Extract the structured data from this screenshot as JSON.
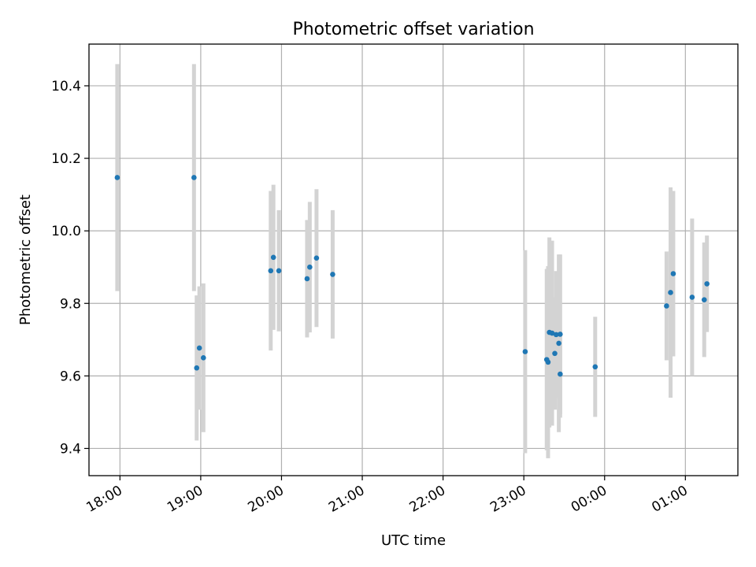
{
  "chart_data": {
    "type": "scatter",
    "title": "Photometric offset variation",
    "xlabel": "UTC time",
    "ylabel": "Photometric offset",
    "x_tick_labels": [
      "18:00",
      "19:00",
      "20:00",
      "21:00",
      "22:00",
      "23:00",
      "00:00",
      "01:00"
    ],
    "y_ticks": [
      9.4,
      9.6,
      9.8,
      10.0,
      10.2,
      10.4
    ],
    "y_tick_labels": [
      "9.4",
      "9.6",
      "9.8",
      "10.0",
      "10.2",
      "10.4"
    ],
    "xlim": [
      "17:37",
      "01:39"
    ],
    "ylim": [
      9.325,
      10.515
    ],
    "grid": true,
    "legend": "none",
    "colors": {
      "point": "#1f77b4",
      "errorbar": "#d3d3d3",
      "grid": "#b0b0b0"
    },
    "points": [
      {
        "x": "17:58",
        "y": 10.147,
        "err": 0.313
      },
      {
        "x": "18:55",
        "y": 10.147,
        "err": 0.313
      },
      {
        "x": "18:57",
        "y": 9.622,
        "err": 0.2
      },
      {
        "x": "18:59",
        "y": 9.677,
        "err": 0.17
      },
      {
        "x": "19:02",
        "y": 9.65,
        "err": 0.205
      },
      {
        "x": "19:52",
        "y": 9.89,
        "err": 0.22
      },
      {
        "x": "19:54",
        "y": 9.927,
        "err": 0.2
      },
      {
        "x": "19:58",
        "y": 9.89,
        "err": 0.167
      },
      {
        "x": "20:19",
        "y": 9.868,
        "err": 0.162
      },
      {
        "x": "20:21",
        "y": 9.9,
        "err": 0.18
      },
      {
        "x": "20:26",
        "y": 9.925,
        "err": 0.19
      },
      {
        "x": "20:38",
        "y": 9.88,
        "err": 0.177
      },
      {
        "x": "23:01",
        "y": 9.667,
        "err": 0.28
      },
      {
        "x": "23:17",
        "y": 9.645,
        "err": 0.25
      },
      {
        "x": "23:18",
        "y": 9.638,
        "err": 0.265
      },
      {
        "x": "23:19",
        "y": 9.72,
        "err": 0.262
      },
      {
        "x": "23:21",
        "y": 9.718,
        "err": 0.255
      },
      {
        "x": "23:23",
        "y": 9.662,
        "err": 0.155
      },
      {
        "x": "23:24",
        "y": 9.714,
        "err": 0.175
      },
      {
        "x": "23:26",
        "y": 9.69,
        "err": 0.245
      },
      {
        "x": "23:27",
        "y": 9.715,
        "err": 0.22
      },
      {
        "x": "23:27",
        "y": 9.605,
        "err": 0.12
      },
      {
        "x": "23:53",
        "y": 9.625,
        "err": 0.138
      },
      {
        "x": "00:46",
        "y": 9.793,
        "err": 0.15
      },
      {
        "x": "00:49",
        "y": 9.83,
        "err": 0.29
      },
      {
        "x": "00:51",
        "y": 9.882,
        "err": 0.228
      },
      {
        "x": "01:05",
        "y": 9.817,
        "err": 0.217
      },
      {
        "x": "01:14",
        "y": 9.81,
        "err": 0.158
      },
      {
        "x": "01:16",
        "y": 9.854,
        "err": 0.133
      }
    ]
  }
}
